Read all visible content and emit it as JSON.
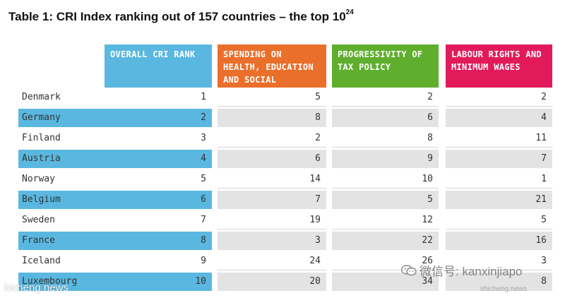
{
  "title": {
    "main": "Table 1: CRI Index ranking out of 157 countries – the top 10",
    "sup": "24"
  },
  "headers": {
    "rank": "OVERALL CRI RANK",
    "spending": "SPENDING ON HEALTH, EDUCATION AND SOCIAL PROTECTION",
    "tax": "PROGRESSIVITY OF TAX POLICY",
    "labour": "LABOUR RIGHTS AND MINIMUM WAGES"
  },
  "colors": {
    "blue": "#5ab8e0",
    "orange": "#ea6f2b",
    "green": "#5fae2e",
    "pink": "#e21a5b",
    "shade": "#e3e3e3"
  },
  "rows": [
    {
      "country": "Denmark",
      "rank": "1",
      "spending": "5",
      "tax": "2",
      "labour": "2"
    },
    {
      "country": "Germany",
      "rank": "2",
      "spending": "8",
      "tax": "6",
      "labour": "4"
    },
    {
      "country": "Finland",
      "rank": "3",
      "spending": "2",
      "tax": "8",
      "labour": "11"
    },
    {
      "country": "Austria",
      "rank": "4",
      "spending": "6",
      "tax": "9",
      "labour": "7"
    },
    {
      "country": "Norway",
      "rank": "5",
      "spending": "14",
      "tax": "10",
      "labour": "1"
    },
    {
      "country": "Belgium",
      "rank": "6",
      "spending": "7",
      "tax": "5",
      "labour": "21"
    },
    {
      "country": "Sweden",
      "rank": "7",
      "spending": "19",
      "tax": "12",
      "labour": "5"
    },
    {
      "country": "France",
      "rank": "8",
      "spending": "3",
      "tax": "22",
      "labour": "16"
    },
    {
      "country": "Iceland",
      "rank": "9",
      "spending": "24",
      "tax": "26",
      "labour": "3"
    },
    {
      "country": "Luxembourg",
      "rank": "10",
      "spending": "20",
      "tax": "34",
      "labour": "8"
    }
  ],
  "watermarks": {
    "left": "kicheng news",
    "right": "微信号: kanxinjiapo",
    "right_small": "shicheng.news"
  }
}
